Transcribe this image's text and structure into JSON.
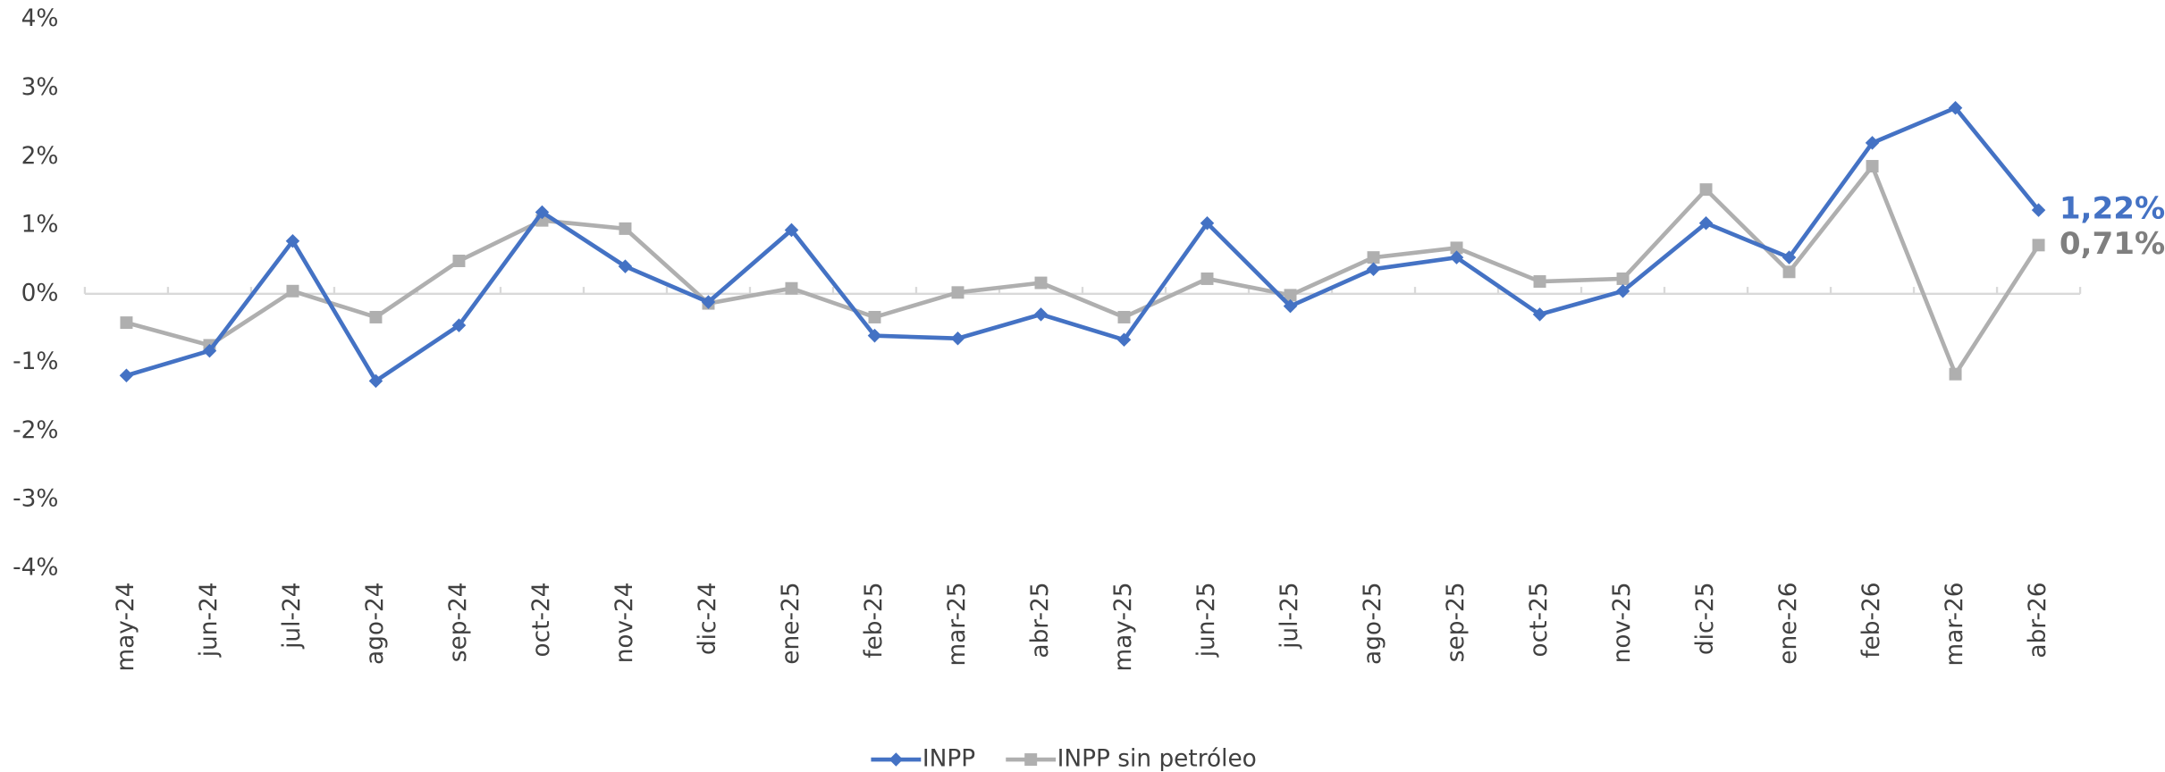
{
  "chart_data": {
    "type": "line",
    "categories": [
      "may-24",
      "jun-24",
      "jul-24",
      "ago-24",
      "sep-24",
      "oct-24",
      "nov-24",
      "dic-24",
      "ene-25",
      "feb-25",
      "mar-25",
      "abr-25",
      "may-25",
      "jun-25",
      "jul-25",
      "ago-25",
      "sep-25",
      "oct-25",
      "nov-25",
      "dic-25",
      "ene-26",
      "feb-26",
      "mar-26",
      "abr-26"
    ],
    "series": [
      {
        "name": "INPP",
        "color": "#4472c4",
        "marker": "diamond",
        "values": [
          -1.19,
          -0.83,
          0.77,
          -1.27,
          -0.46,
          1.19,
          0.4,
          -0.12,
          0.93,
          -0.61,
          -0.65,
          -0.3,
          -0.67,
          1.03,
          -0.18,
          0.36,
          0.53,
          -0.3,
          0.04,
          1.03,
          0.53,
          2.2,
          2.71,
          1.22
        ],
        "value_labels": [
          null,
          null,
          null,
          null,
          null,
          null,
          null,
          null,
          null,
          null,
          null,
          null,
          null,
          null,
          null,
          null,
          null,
          null,
          null,
          null,
          null,
          null,
          null,
          "1,22%"
        ]
      },
      {
        "name": "INPP sin petróleo",
        "color": "#afafaf",
        "label_color": "#7f7f7f",
        "marker": "square",
        "values": [
          -0.42,
          -0.75,
          0.04,
          -0.34,
          0.48,
          1.07,
          0.95,
          -0.14,
          0.08,
          -0.34,
          0.02,
          0.16,
          -0.34,
          0.22,
          -0.02,
          0.53,
          0.67,
          0.18,
          0.22,
          1.52,
          0.32,
          1.86,
          -1.17,
          0.71
        ],
        "value_labels": [
          null,
          null,
          null,
          null,
          null,
          null,
          null,
          null,
          null,
          null,
          null,
          null,
          null,
          null,
          null,
          null,
          null,
          null,
          null,
          null,
          null,
          null,
          null,
          "0,71%"
        ]
      }
    ],
    "ylim": [
      -4,
      4
    ],
    "yticks": [
      {
        "value": -4,
        "label": "-4%"
      },
      {
        "value": -3,
        "label": "-3%"
      },
      {
        "value": -2,
        "label": "-2%"
      },
      {
        "value": -1,
        "label": "-1%"
      },
      {
        "value": 0,
        "label": "0%"
      },
      {
        "value": 1,
        "label": "1%"
      },
      {
        "value": 2,
        "label": "2%"
      },
      {
        "value": 3,
        "label": "3%"
      },
      {
        "value": 4,
        "label": "4%"
      }
    ],
    "grid": false,
    "legend": "bottom"
  }
}
